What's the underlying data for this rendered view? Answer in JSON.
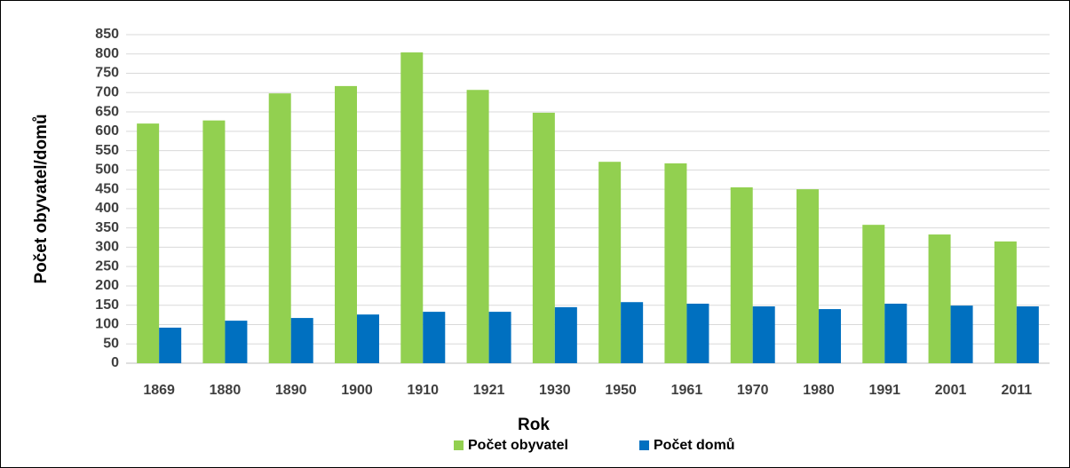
{
  "chart_data": {
    "type": "bar",
    "x_label": "Rok",
    "y_label": "Počet obyvatel/domů",
    "categories": [
      "1869",
      "1880",
      "1890",
      "1900",
      "1910",
      "1921",
      "1930",
      "1950",
      "1961",
      "1970",
      "1980",
      "1991",
      "2001",
      "2011"
    ],
    "series": [
      {
        "name": "Počet obyvatel",
        "color": "#92d050",
        "values": [
          620,
          628,
          698,
          717,
          804,
          707,
          648,
          521,
          517,
          455,
          450,
          358,
          333,
          315
        ]
      },
      {
        "name": "Počet domů",
        "color": "#0070c0",
        "values": [
          92,
          110,
          117,
          126,
          133,
          133,
          145,
          158,
          154,
          147,
          140,
          154,
          149,
          147
        ]
      }
    ],
    "ylim": [
      0,
      850
    ],
    "yticks": [
      0,
      50,
      100,
      150,
      200,
      250,
      300,
      350,
      400,
      450,
      500,
      550,
      600,
      650,
      700,
      750,
      800,
      850
    ],
    "grid": true,
    "legend": "bottom"
  }
}
